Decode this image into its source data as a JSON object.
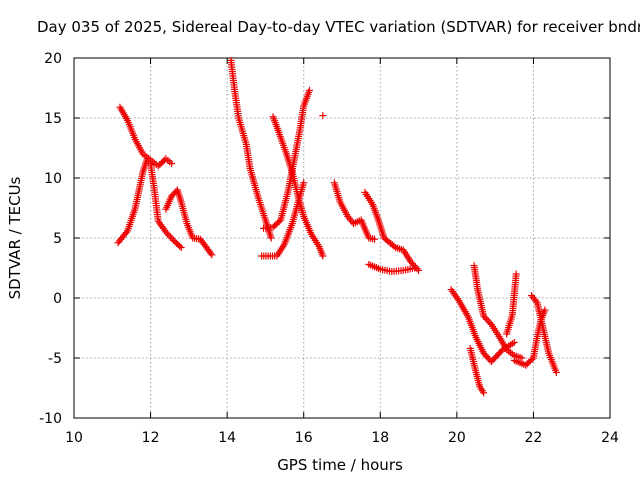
{
  "chart_data": {
    "type": "scatter",
    "title": "Day 035 of 2025, Sidereal Day-to-day VTEC variation (SDTVAR) for receiver bndr",
    "xlabel": "GPS time / hours",
    "ylabel": "SDTVAR / TECUs",
    "xlim": [
      10,
      24
    ],
    "ylim": [
      -10,
      20
    ],
    "xticks": [
      "10",
      "12",
      "14",
      "16",
      "18",
      "20",
      "22",
      "24"
    ],
    "yticks": [
      "-10",
      "-5",
      "0",
      "5",
      "10",
      "15",
      "20"
    ],
    "grid": true,
    "marker": "+",
    "color": "#ee0000",
    "tracks": [
      [
        [
          11.2,
          15.9
        ],
        [
          11.4,
          14.8
        ],
        [
          11.6,
          13.2
        ],
        [
          11.8,
          12.0
        ],
        [
          12.0,
          11.5
        ],
        [
          12.2,
          11.0
        ],
        [
          12.4,
          11.6
        ],
        [
          12.55,
          11.2
        ]
      ],
      [
        [
          11.15,
          4.6
        ],
        [
          11.4,
          5.6
        ],
        [
          11.6,
          7.5
        ],
        [
          11.8,
          10.5
        ],
        [
          11.9,
          11.5
        ],
        [
          12.0,
          11.2
        ],
        [
          12.1,
          9.0
        ],
        [
          12.2,
          6.4
        ],
        [
          12.4,
          5.5
        ],
        [
          12.6,
          4.8
        ],
        [
          12.8,
          4.2
        ]
      ],
      [
        [
          12.4,
          7.4
        ],
        [
          12.55,
          8.5
        ],
        [
          12.7,
          9.0
        ],
        [
          12.8,
          8.0
        ],
        [
          12.95,
          6.2
        ],
        [
          13.1,
          5.0
        ],
        [
          13.3,
          4.9
        ],
        [
          13.6,
          3.6
        ]
      ],
      [
        [
          14.1,
          19.8
        ],
        [
          14.2,
          17.2
        ],
        [
          14.3,
          15.0
        ],
        [
          14.5,
          12.8
        ],
        [
          14.6,
          10.8
        ],
        [
          14.8,
          8.5
        ],
        [
          15.0,
          6.5
        ],
        [
          15.15,
          5.0
        ]
      ],
      [
        [
          14.95,
          5.8
        ],
        [
          15.2,
          5.9
        ],
        [
          15.4,
          6.5
        ],
        [
          15.6,
          9.0
        ],
        [
          15.75,
          11.5
        ],
        [
          15.9,
          14.0
        ],
        [
          16.0,
          16.0
        ],
        [
          16.15,
          17.3
        ]
      ],
      [
        [
          15.2,
          15.1
        ],
        [
          15.35,
          13.8
        ],
        [
          15.55,
          12.0
        ],
        [
          15.7,
          10.5
        ],
        [
          15.85,
          8.5
        ],
        [
          16.0,
          6.8
        ],
        [
          16.2,
          5.3
        ],
        [
          16.4,
          4.3
        ],
        [
          16.5,
          3.5
        ]
      ],
      [
        [
          14.9,
          3.5
        ],
        [
          15.3,
          3.5
        ],
        [
          15.5,
          4.5
        ],
        [
          15.7,
          6.2
        ],
        [
          15.9,
          8.5
        ],
        [
          16.0,
          9.6
        ]
      ],
      [
        [
          16.5,
          15.2
        ]
      ],
      [
        [
          16.8,
          9.6
        ],
        [
          16.95,
          8.0
        ],
        [
          17.15,
          6.8
        ],
        [
          17.3,
          6.2
        ],
        [
          17.5,
          6.5
        ],
        [
          17.7,
          5.0
        ],
        [
          17.85,
          4.9
        ]
      ],
      [
        [
          17.6,
          8.8
        ],
        [
          17.8,
          7.8
        ],
        [
          17.95,
          6.5
        ],
        [
          18.1,
          5.0
        ],
        [
          18.4,
          4.2
        ],
        [
          18.6,
          4.0
        ],
        [
          18.8,
          3.0
        ],
        [
          19.0,
          2.3
        ]
      ],
      [
        [
          17.7,
          2.8
        ],
        [
          18.0,
          2.4
        ],
        [
          18.3,
          2.2
        ],
        [
          18.6,
          2.3
        ],
        [
          18.9,
          2.5
        ]
      ],
      [
        [
          19.85,
          0.7
        ],
        [
          20.05,
          -0.2
        ],
        [
          20.3,
          -1.6
        ],
        [
          20.5,
          -3.3
        ],
        [
          20.7,
          -4.6
        ],
        [
          20.9,
          -5.3
        ],
        [
          21.2,
          -4.3
        ],
        [
          21.4,
          -3.9
        ],
        [
          21.5,
          -3.7
        ]
      ],
      [
        [
          20.45,
          2.7
        ],
        [
          20.55,
          0.6
        ],
        [
          20.7,
          -1.5
        ],
        [
          20.9,
          -2.2
        ],
        [
          21.1,
          -3.2
        ],
        [
          21.3,
          -4.3
        ],
        [
          21.5,
          -4.8
        ],
        [
          21.7,
          -5.0
        ]
      ],
      [
        [
          20.35,
          -4.2
        ],
        [
          20.5,
          -6.2
        ],
        [
          20.6,
          -7.4
        ],
        [
          20.7,
          -7.9
        ]
      ],
      [
        [
          21.3,
          -3.0
        ],
        [
          21.45,
          -1.4
        ],
        [
          21.55,
          2.0
        ]
      ],
      [
        [
          21.5,
          -5.2
        ],
        [
          21.8,
          -5.6
        ],
        [
          22.0,
          -5.0
        ],
        [
          22.1,
          -3.2
        ],
        [
          22.2,
          -1.8
        ],
        [
          22.3,
          -1.0
        ]
      ],
      [
        [
          21.95,
          0.2
        ],
        [
          22.1,
          -0.4
        ],
        [
          22.25,
          -2.5
        ],
        [
          22.4,
          -4.6
        ],
        [
          22.6,
          -6.2
        ]
      ]
    ]
  }
}
